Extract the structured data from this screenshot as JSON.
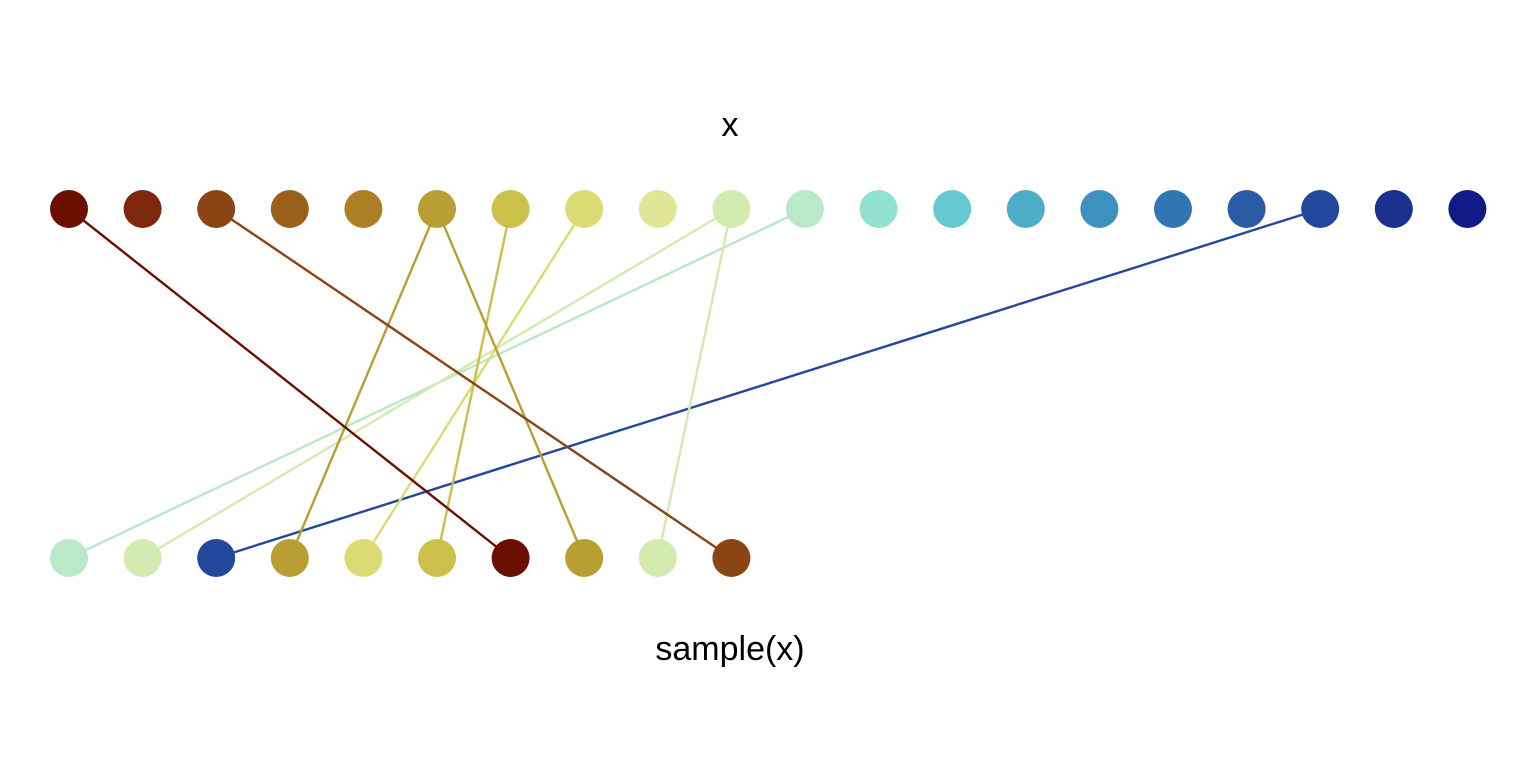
{
  "labels": {
    "top": "x",
    "bottom": "sample(x)"
  },
  "sampling": {
    "top_colors": [
      "#6b0f00",
      "#7d280c",
      "#8b4413",
      "#99601a",
      "#ac7f24",
      "#b99f31",
      "#cbc04a",
      "#dcdb73",
      "#e0e696",
      "#d3eab1",
      "#b9e9c8",
      "#91e1d2",
      "#65c9cf",
      "#4eaec7",
      "#3c91bf",
      "#3275b5",
      "#2b5ba5",
      "#22479c",
      "#1a318f",
      "#111b85"
    ],
    "sample_indices": [
      10,
      9,
      17,
      5,
      7,
      6,
      0,
      5,
      9,
      2
    ]
  }
}
